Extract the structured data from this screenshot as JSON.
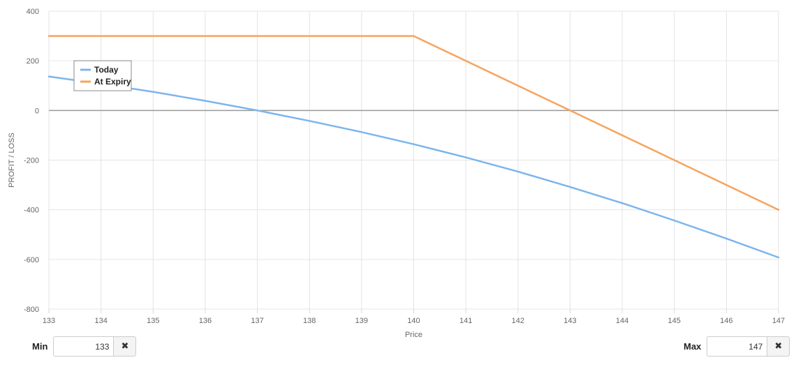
{
  "chart_data": {
    "type": "line",
    "xlabel": "Price",
    "ylabel": "PROFIT / LOSS",
    "xlim": [
      133,
      147
    ],
    "ylim": [
      -800,
      400
    ],
    "x_ticks": [
      133,
      134,
      135,
      136,
      137,
      138,
      139,
      140,
      141,
      142,
      143,
      144,
      145,
      146,
      147
    ],
    "y_ticks": [
      400,
      200,
      0,
      -200,
      -400,
      -600,
      -800
    ],
    "grid": true,
    "legend_position": "top-left",
    "zero_line": true,
    "series": [
      {
        "name": "Today",
        "color": "#7cb5ec",
        "x": [
          133,
          134,
          135,
          136,
          137,
          138,
          139,
          140,
          141,
          142,
          143,
          144,
          145,
          146,
          147
        ],
        "y": [
          137,
          107,
          75,
          39,
          0,
          -42,
          -87,
          -136,
          -189,
          -246,
          -308,
          -373,
          -443,
          -516,
          -592
        ]
      },
      {
        "name": "At Expiry",
        "color": "#f7a35c",
        "x": [
          133,
          140,
          143,
          147
        ],
        "y": [
          300,
          300,
          0,
          -400
        ]
      }
    ]
  },
  "controls": {
    "min": {
      "label": "Min",
      "value": "133",
      "clear_icon": "✖"
    },
    "max": {
      "label": "Max",
      "value": "147",
      "clear_icon": "✖"
    }
  }
}
